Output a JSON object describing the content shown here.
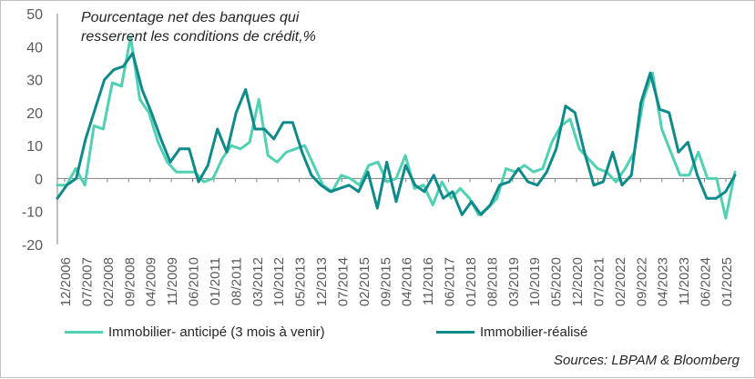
{
  "chart_data": {
    "type": "line",
    "annotation": "Pourcentage net des banques qui\nresserrent les  conditions de crédit,%",
    "ylim": [
      -20,
      50
    ],
    "y_ticks": [
      -20,
      -10,
      0,
      10,
      20,
      30,
      40,
      50
    ],
    "x_tick_labels": [
      "12/2006",
      "07/2007",
      "02/2008",
      "09/2008",
      "04/2009",
      "11/2009",
      "06/2010",
      "01/2011",
      "08/2011",
      "03/2012",
      "10/2012",
      "05/2013",
      "12/2013",
      "07/2014",
      "02/2015",
      "09/2015",
      "04/2016",
      "11/2016",
      "06/2017",
      "01/2018",
      "08/2018",
      "03/2019",
      "10/2019",
      "05/2020",
      "12/2020",
      "07/2021",
      "02/2022",
      "09/2022",
      "04/2023",
      "11/2023",
      "06/2024",
      "01/2025"
    ],
    "series": [
      {
        "name": "Immobilier- anticipé (3 mois à venir)",
        "color": "#4fd1b2",
        "values": [
          -2,
          -2,
          3,
          -2,
          16,
          15,
          29,
          28,
          43,
          24,
          20,
          11,
          5,
          2,
          2,
          2,
          -1,
          0,
          6,
          10,
          9,
          11,
          24,
          7,
          5,
          8,
          9,
          10,
          4,
          -2,
          -4,
          1,
          0,
          -2,
          4,
          5,
          -1,
          0,
          7,
          -3,
          -2,
          -8,
          -1,
          -6,
          -3,
          -6,
          -11,
          -9,
          -6,
          3,
          2,
          4,
          2,
          3,
          11,
          16,
          18,
          9,
          6,
          3,
          2,
          -1,
          3,
          8,
          24,
          32,
          15,
          8,
          1,
          1,
          8,
          0,
          0,
          -12,
          2
        ]
      },
      {
        "name": "Immobilier-réalisé",
        "color": "#0e8a8a",
        "values": [
          -6,
          -2,
          0,
          12,
          21,
          30,
          33,
          34,
          38,
          27,
          20,
          12,
          5,
          9,
          9,
          -1,
          4,
          15,
          8,
          20,
          27,
          15,
          15,
          12,
          17,
          17,
          8,
          1,
          -2,
          -4,
          -3,
          -2,
          -4,
          2,
          -9,
          5,
          -7,
          4,
          -2,
          -4,
          1,
          -6,
          -4,
          -11,
          -7,
          -11,
          -8,
          -2,
          -1,
          3,
          -1,
          -2,
          2,
          9,
          22,
          20,
          8,
          -2,
          -1,
          8,
          -2,
          1,
          23,
          32,
          21,
          20,
          8,
          11,
          1,
          -6,
          -6,
          -4,
          1
        ]
      }
    ],
    "legend_position": "bottom",
    "grid": false,
    "source": "Sources: LBPAM & Bloomberg"
  }
}
